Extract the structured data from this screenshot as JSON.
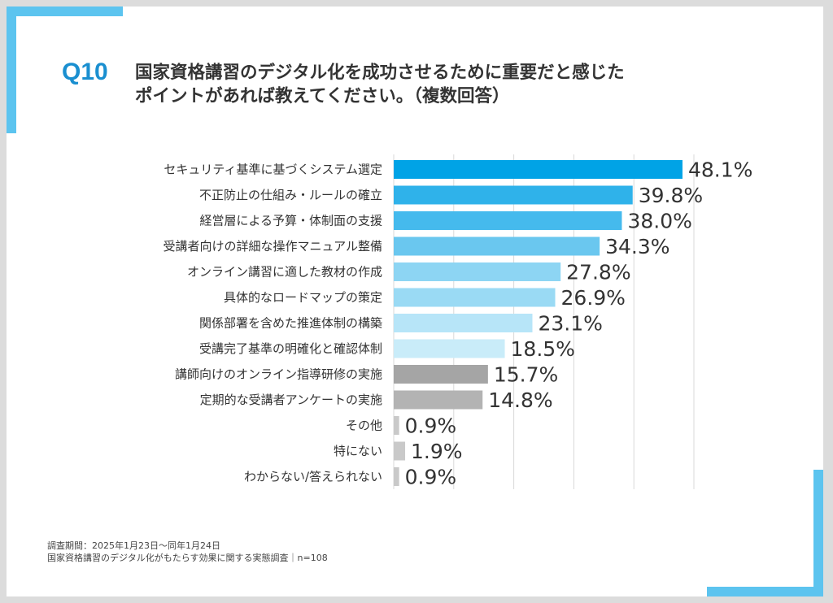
{
  "question": {
    "number": "Q10",
    "title_line1": "国家資格講習のデジタル化を成功させるために重要だと感じた",
    "title_line2": "ポイントがあれば教えてください。（複数回答）"
  },
  "colors": {
    "accent": "#5cc4ef",
    "question_number": "#1a8fd0",
    "grid": "#d9d9d9"
  },
  "chart_data": {
    "type": "bar",
    "orientation": "horizontal",
    "title": "国家資格講習のデジタル化を成功させるために重要だと感じたポイントがあれば教えてください。（複数回答）",
    "xlim": [
      0,
      50
    ],
    "grid": true,
    "categories": [
      "セキュリティ基準に基づくシステム選定",
      "不正防止の仕組み・ルールの確立",
      "経営層による予算・体制面の支援",
      "受講者向けの詳細な操作マニュアル整備",
      "オンライン講習に適した教材の作成",
      "具体的なロードマップの策定",
      "関係部署を含めた推進体制の構築",
      "受講完了基準の明確化と確認体制",
      "講師向けのオンライン指導研修の実施",
      "定期的な受講者アンケートの実施",
      "その他",
      "特にない",
      "わからない/答えられない"
    ],
    "values": [
      48.1,
      39.8,
      38.0,
      34.3,
      27.8,
      26.9,
      23.1,
      18.5,
      15.7,
      14.8,
      0.9,
      1.9,
      0.9
    ],
    "value_labels": [
      "48.1%",
      "39.8%",
      "38.0%",
      "34.3%",
      "27.8%",
      "26.9%",
      "23.1%",
      "18.5%",
      "15.7%",
      "14.8%",
      "0.9%",
      "1.9%",
      "0.9%"
    ],
    "bar_colors": [
      "#00a3e6",
      "#2fb2ea",
      "#45baed",
      "#6ac7ef",
      "#8dd5f3",
      "#9adaf4",
      "#b7e5f8",
      "#c9ecf9",
      "#a5a5a5",
      "#b3b3b3",
      "#c9c9c9",
      "#c9c9c9",
      "#c9c9c9"
    ]
  },
  "footnote": {
    "line1": "調査期間：2025年1月23日～同年1月24日",
    "line2": "国家資格講習のデジタル化がもたらす効果に関する実態調査｜n=108"
  }
}
